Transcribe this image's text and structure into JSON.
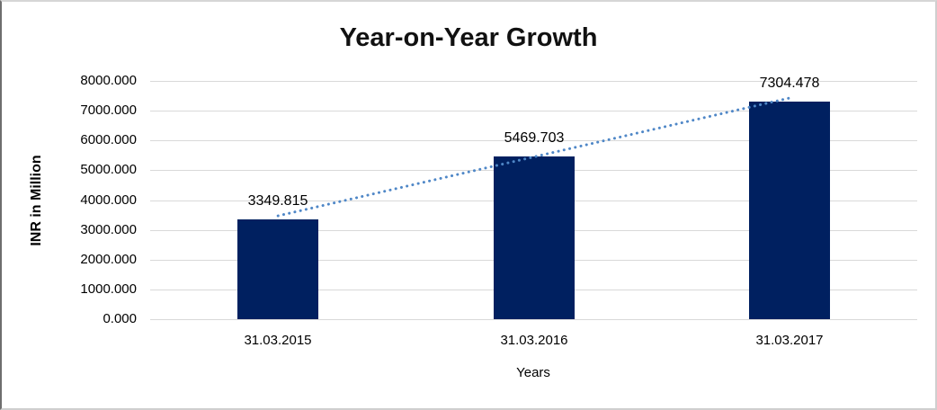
{
  "title": "Year-on-Year Growth",
  "chart_data": {
    "type": "bar",
    "title": "Year-on-Year Growth",
    "categories": [
      "31.03.2015",
      "31.03.2016",
      "31.03.2017"
    ],
    "values": [
      3349.815,
      5469.703,
      7304.478
    ],
    "data_labels": [
      "3349.815",
      "5469.703",
      "7304.478"
    ],
    "xlabel": "Years",
    "ylabel": "INR in Million",
    "ylim": [
      0,
      8000
    ],
    "ytick_step": 1000,
    "ytick_labels": [
      "0.000",
      "1000.000",
      "2000.000",
      "3000.000",
      "4000.000",
      "5000.000",
      "6000.000",
      "7000.000",
      "8000.000"
    ],
    "grid": "horizontal",
    "legend": "none",
    "bar_color": "#002060",
    "gridline_color": "#d9d9d9",
    "trendline": {
      "type": "linear",
      "style": "dotted",
      "color": "#4f87c7"
    }
  }
}
